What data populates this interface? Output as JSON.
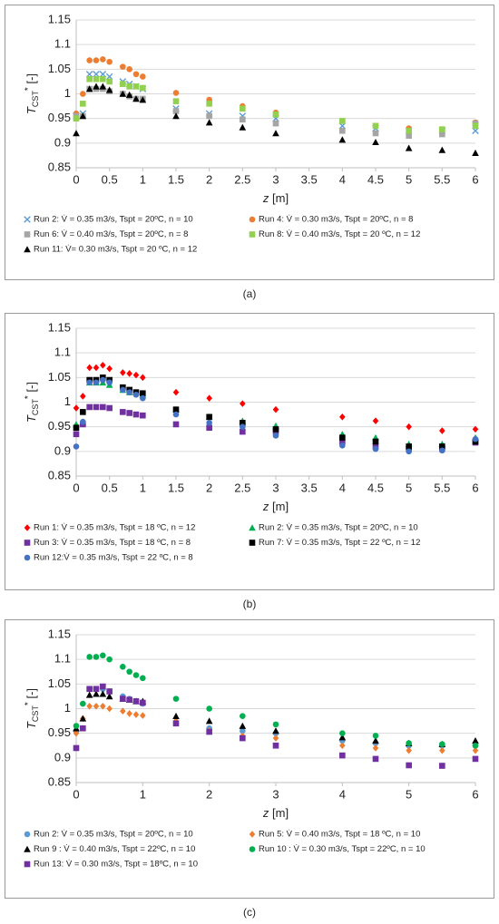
{
  "chart_data": [
    {
      "type": "scatter",
      "caption": "(a)",
      "ylabel": [
        "T",
        "CST",
        "*",
        " [-]"
      ],
      "xlabel": [
        "z",
        " [m]"
      ],
      "xlim": [
        0,
        6
      ],
      "xticks": [
        0,
        0.5,
        1,
        1.5,
        2,
        2.5,
        3,
        3.5,
        4,
        4.5,
        5,
        5.5,
        6
      ],
      "ylim": [
        0.85,
        1.15
      ],
      "yticks": [
        0.85,
        0.9,
        0.95,
        1,
        1.05,
        1.1,
        1.15
      ],
      "grid": true,
      "x": [
        0,
        0.1,
        0.2,
        0.3,
        0.4,
        0.5,
        0.7,
        0.8,
        0.9,
        1,
        1.5,
        2,
        2.5,
        3,
        4,
        4.5,
        5,
        5.5,
        6
      ],
      "series": [
        {
          "name": "Run 2: V̇ = 0.35 m3/s, Tspt = 20ºC, n = 10",
          "color": "#5b9bd5",
          "marker": "x",
          "values": [
            0.955,
            0.96,
            1.04,
            1.04,
            1.04,
            1.035,
            1.025,
            1.02,
            1.015,
            1.01,
            0.97,
            0.96,
            0.955,
            0.95,
            0.935,
            0.93,
            0.925,
            0.925,
            0.925
          ]
        },
        {
          "name": "Run 4:  V̇ = 0.30 m3/s, Tspt = 20ºC, n = 8",
          "color": "#ed7d31",
          "marker": "circle",
          "values": [
            0.96,
            1.0,
            1.068,
            1.068,
            1.07,
            1.065,
            1.055,
            1.05,
            1.04,
            1.035,
            1.002,
            0.988,
            0.975,
            0.962,
            0.945,
            0.935,
            0.93,
            0.925,
            0.942
          ]
        },
        {
          "name": "Run 6:  V̇ = 0.40 m3/s, Tspt = 20ºC, n = 8",
          "color": "#a5a5a5",
          "marker": "square",
          "values": [
            0.955,
            0.955,
            1.01,
            1.01,
            1.01,
            1.005,
            1.0,
            0.995,
            0.99,
            0.99,
            0.965,
            0.955,
            0.948,
            0.94,
            0.925,
            0.92,
            0.915,
            0.918,
            0.94
          ]
        },
        {
          "name": "Run 8:  V̇ = 0.40 m3/s, Tspt = 20 ºC, n = 12",
          "color": "#92d050",
          "marker": "square",
          "values": [
            0.95,
            0.98,
            1.03,
            1.03,
            1.03,
            1.025,
            1.02,
            1.015,
            1.015,
            1.012,
            0.985,
            0.98,
            0.97,
            0.958,
            0.945,
            0.935,
            0.925,
            0.928,
            0.935
          ]
        },
        {
          "name": "Run 11:  V̇= 0.30 m3/s, Tspt = 20 ºC, n = 12",
          "color": "#000000",
          "marker": "triangle",
          "values": [
            0.92,
            0.955,
            1.01,
            1.015,
            1.015,
            1.008,
            1.0,
            0.998,
            0.99,
            0.988,
            0.955,
            0.942,
            0.932,
            0.92,
            0.907,
            0.902,
            0.89,
            0.886,
            0.88
          ]
        }
      ]
    },
    {
      "type": "scatter",
      "caption": "(b)",
      "ylabel": [
        "T",
        "CST",
        "*",
        " [-]"
      ],
      "xlabel": [
        "z",
        " [m]"
      ],
      "xlim": [
        0,
        6
      ],
      "xticks": [
        0,
        0.5,
        1,
        1.5,
        2,
        2.5,
        3,
        3.5,
        4,
        4.5,
        5,
        5.5,
        6
      ],
      "ylim": [
        0.85,
        1.15
      ],
      "yticks": [
        0.85,
        0.9,
        0.95,
        1,
        1.05,
        1.1,
        1.15
      ],
      "grid": true,
      "x": [
        0,
        0.1,
        0.2,
        0.3,
        0.4,
        0.5,
        0.7,
        0.8,
        0.9,
        1,
        1.5,
        2,
        2.5,
        3,
        4,
        4.5,
        5,
        5.5,
        6
      ],
      "series": [
        {
          "name": "Run 1: V̇ = 0.35 m3/s, Tspt = 18 ºC, n = 12",
          "color": "#ff0000",
          "marker": "diamond",
          "values": [
            0.988,
            1.012,
            1.07,
            1.07,
            1.075,
            1.068,
            1.06,
            1.058,
            1.055,
            1.05,
            1.02,
            1.008,
            0.997,
            0.985,
            0.97,
            0.962,
            0.95,
            0.942,
            0.945
          ]
        },
        {
          "name": "Run 2: V̇ = 0.35 m3/s, Tspt = 20ºC, n = 10",
          "color": "#00b050",
          "marker": "triangle",
          "values": [
            0.955,
            0.96,
            1.04,
            1.04,
            1.04,
            1.035,
            1.025,
            1.02,
            1.02,
            1.015,
            0.985,
            0.97,
            0.962,
            0.952,
            0.935,
            0.928,
            0.915,
            0.915,
            0.928
          ]
        },
        {
          "name": "Run 3: V̇ = 0.35 m3/s, Tspt = 18 ºC, n = 8",
          "color": "#7030a0",
          "marker": "square",
          "values": [
            0.935,
            0.955,
            0.99,
            0.99,
            0.99,
            0.988,
            0.98,
            0.978,
            0.975,
            0.973,
            0.955,
            0.948,
            0.94,
            0.94,
            0.92,
            0.91,
            0.905,
            0.905,
            0.918
          ]
        },
        {
          "name": "Run 7: V̇ = 0.35 m3/s, Tspt = 22 ºC, n = 12",
          "color": "#000000",
          "marker": "square",
          "values": [
            0.948,
            0.98,
            1.045,
            1.045,
            1.05,
            1.045,
            1.03,
            1.025,
            1.02,
            1.018,
            0.985,
            0.97,
            0.958,
            0.945,
            0.928,
            0.92,
            0.91,
            0.91,
            0.92
          ]
        },
        {
          "name": "Run 12:V̇ = 0.35 m3/s, Tspt = 22 ºC, n = 8",
          "color": "#4472c4",
          "marker": "circle",
          "values": [
            0.91,
            0.96,
            1.04,
            1.04,
            1.045,
            1.04,
            1.025,
            1.02,
            1.015,
            1.008,
            0.975,
            0.958,
            0.95,
            0.932,
            0.912,
            0.905,
            0.9,
            0.902,
            0.925
          ]
        }
      ]
    },
    {
      "type": "scatter",
      "caption": "(c)",
      "ylabel": [
        "T",
        "CST",
        "*",
        " [-]"
      ],
      "xlabel": [
        "z",
        " [m]"
      ],
      "xlim": [
        0,
        6
      ],
      "xticks": [
        0,
        1,
        2,
        3,
        4,
        5,
        6
      ],
      "ylim": [
        0.85,
        1.15
      ],
      "yticks": [
        0.85,
        0.9,
        0.95,
        1,
        1.05,
        1.1,
        1.15
      ],
      "grid": true,
      "x": [
        0,
        0.1,
        0.2,
        0.3,
        0.4,
        0.5,
        0.7,
        0.8,
        0.9,
        1,
        1.5,
        2,
        2.5,
        3,
        4,
        4.5,
        5,
        5.5,
        6
      ],
      "series": [
        {
          "name": "Run 2: V̇ = 0.35 m3/s, Tspt = 20ºC, n = 10",
          "color": "#5b9bd5",
          "marker": "circle",
          "values": [
            0.955,
            0.96,
            1.04,
            1.04,
            1.04,
            1.035,
            1.025,
            1.02,
            1.015,
            1.01,
            0.97,
            0.96,
            0.955,
            0.95,
            0.935,
            0.93,
            0.925,
            0.925,
            0.925
          ]
        },
        {
          "name": "Run 5: V̇ = 0.40 m3/s, Tspt = 18 ºC, n = 10",
          "color": "#ed7d31",
          "marker": "diamond",
          "values": [
            0.95,
            0.98,
            1.005,
            1.005,
            1.005,
            1.0,
            0.995,
            0.99,
            0.988,
            0.986,
            0.975,
            0.955,
            0.945,
            0.94,
            0.925,
            0.92,
            0.915,
            0.915,
            0.915
          ]
        },
        {
          "name": "Run 9 : V̇ = 0.40 m3/s, Tspt = 22ºC, n = 10",
          "color": "#000000",
          "marker": "triangle",
          "values": [
            0.96,
            0.98,
            1.028,
            1.03,
            1.03,
            1.025,
            1.02,
            1.018,
            1.015,
            1.015,
            0.985,
            0.975,
            0.965,
            0.955,
            0.942,
            0.935,
            0.93,
            0.928,
            0.935
          ]
        },
        {
          "name": "Run 10 : V̇ = 0.30 m3/s, Tspt = 22ºC, n = 10",
          "color": "#00b050",
          "marker": "circle",
          "values": [
            0.965,
            1.01,
            1.105,
            1.105,
            1.108,
            1.1,
            1.085,
            1.075,
            1.068,
            1.062,
            1.02,
            1.0,
            0.985,
            0.968,
            0.95,
            0.945,
            0.93,
            0.928,
            0.925
          ]
        },
        {
          "name": "Run 13: V̇ = 0.30 m3/s, Tspt = 18ºC, n = 10",
          "color": "#7030a0",
          "marker": "square",
          "values": [
            0.92,
            0.96,
            1.04,
            1.04,
            1.045,
            1.035,
            1.02,
            1.018,
            1.015,
            1.012,
            0.97,
            0.953,
            0.94,
            0.925,
            0.905,
            0.898,
            0.885,
            0.884,
            0.898
          ]
        }
      ]
    }
  ]
}
